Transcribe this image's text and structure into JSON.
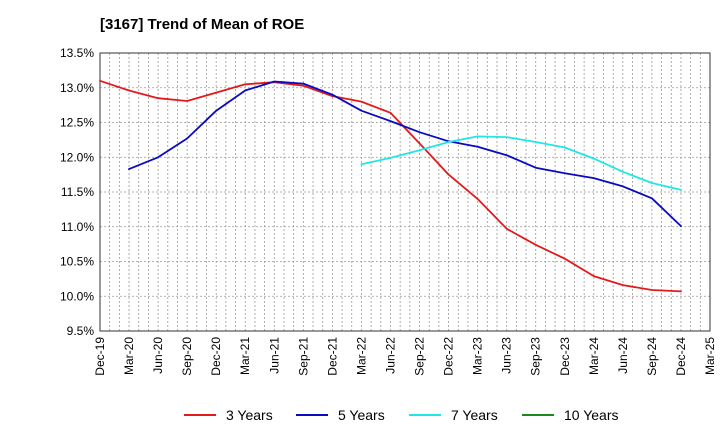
{
  "chart_data": {
    "type": "line",
    "title": "[3167]  Trend of Mean of ROE",
    "xlabel": "",
    "ylabel": "",
    "x": [
      "Dec-19",
      "Mar-20",
      "Jun-20",
      "Sep-20",
      "Dec-20",
      "Mar-21",
      "Jun-21",
      "Sep-21",
      "Dec-21",
      "Mar-22",
      "Jun-22",
      "Sep-22",
      "Dec-22",
      "Mar-23",
      "Jun-23",
      "Sep-23",
      "Dec-23",
      "Mar-24",
      "Jun-24",
      "Sep-24",
      "Dec-24",
      "Mar-25"
    ],
    "ylim": [
      9.5,
      13.5
    ],
    "yticks": [
      "13.5%",
      "13.0%",
      "12.5%",
      "12.0%",
      "11.5%",
      "11.0%",
      "10.5%",
      "10.0%",
      "9.5%"
    ],
    "grid": true,
    "legend_position": "bottom",
    "series": [
      {
        "name": "3 Years",
        "color": "#e31a1c",
        "values": [
          13.1,
          12.96,
          12.85,
          12.81,
          12.93,
          13.05,
          13.08,
          13.03,
          12.88,
          12.8,
          12.64,
          12.2,
          11.75,
          11.4,
          10.97,
          10.74,
          10.54,
          10.29,
          10.16,
          10.09,
          10.07,
          null
        ]
      },
      {
        "name": "5 Years",
        "color": "#0a0ac0",
        "values": [
          null,
          11.83,
          12.0,
          12.27,
          12.67,
          12.96,
          13.09,
          13.06,
          12.9,
          12.67,
          12.52,
          12.36,
          12.23,
          12.15,
          12.03,
          11.85,
          11.77,
          11.7,
          11.58,
          11.41,
          11.01,
          null
        ]
      },
      {
        "name": "7 Years",
        "color": "#21e6e6",
        "values": [
          null,
          null,
          null,
          null,
          null,
          null,
          null,
          null,
          null,
          11.9,
          11.99,
          12.1,
          12.22,
          12.3,
          12.29,
          12.22,
          12.14,
          11.98,
          11.79,
          11.63,
          11.53,
          null
        ]
      },
      {
        "name": "10 Years",
        "color": "#1a8a1a",
        "values": [
          null,
          null,
          null,
          null,
          null,
          null,
          null,
          null,
          null,
          null,
          null,
          null,
          null,
          null,
          null,
          null,
          null,
          null,
          null,
          null,
          null,
          null
        ]
      }
    ]
  }
}
